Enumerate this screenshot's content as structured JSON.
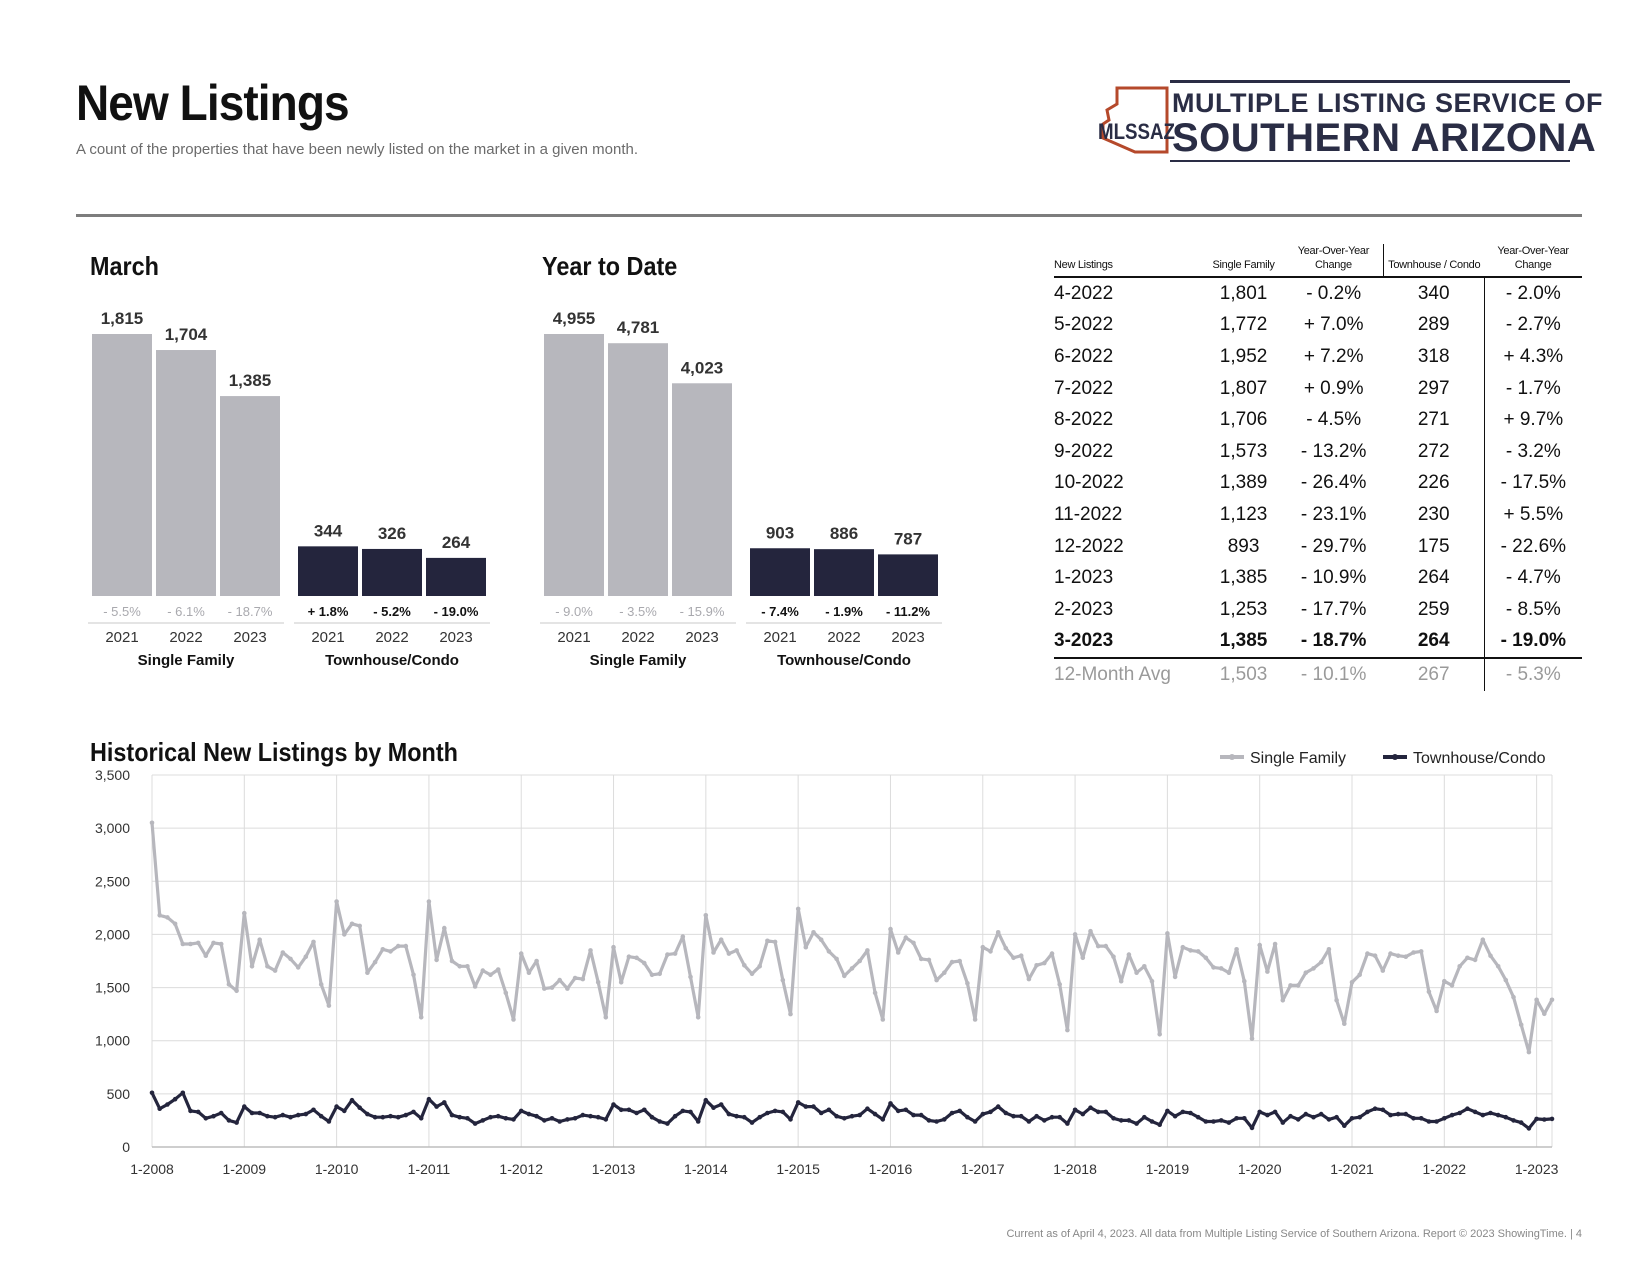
{
  "header": {
    "title": "New Listings",
    "subtitle": "A count of the properties that have been newly listed on the market in a given month.",
    "logo_line1": "MULTIPLE LISTING SERVICE OF",
    "logo_line2": "SOUTHERN ARIZONA",
    "logo_abbr": "MLSSAZ"
  },
  "colors": {
    "single_family": "#b7b7bd",
    "townhouse": "#24253d",
    "logo_outline": "#b5492b",
    "logo_text": "#2a2d45"
  },
  "footer": "Current as of April 4, 2023. All data from Multiple Listing Service of Southern Arizona. Report © 2023 ShowingTime.  |  4",
  "chart_data": [
    {
      "type": "bar",
      "title": "March",
      "groups": [
        {
          "name": "Single Family",
          "categories": [
            "2021",
            "2022",
            "2023"
          ],
          "values": [
            1815,
            1704,
            1385
          ],
          "value_labels": [
            "1,815",
            "1,704",
            "1,385"
          ],
          "changes": [
            "- 5.5%",
            "- 6.1%",
            "- 18.7%"
          ]
        },
        {
          "name": "Townhouse/Condo",
          "categories": [
            "2021",
            "2022",
            "2023"
          ],
          "values": [
            344,
            326,
            264
          ],
          "value_labels": [
            "344",
            "326",
            "264"
          ],
          "changes": [
            "+ 1.8%",
            "- 5.2%",
            "- 19.0%"
          ]
        }
      ]
    },
    {
      "type": "bar",
      "title": "Year to Date",
      "groups": [
        {
          "name": "Single Family",
          "categories": [
            "2021",
            "2022",
            "2023"
          ],
          "values": [
            4955,
            4781,
            4023
          ],
          "value_labels": [
            "4,955",
            "4,781",
            "4,023"
          ],
          "changes": [
            "- 9.0%",
            "- 3.5%",
            "- 15.9%"
          ]
        },
        {
          "name": "Townhouse/Condo",
          "categories": [
            "2021",
            "2022",
            "2023"
          ],
          "values": [
            903,
            886,
            787
          ],
          "value_labels": [
            "903",
            "886",
            "787"
          ],
          "changes": [
            "- 7.4%",
            "- 1.9%",
            "- 11.2%"
          ]
        }
      ]
    },
    {
      "type": "table",
      "headers": [
        "New Listings",
        "Single Family",
        "Year-Over-Year Change",
        "Townhouse / Condo",
        "Year-Over-Year Change"
      ],
      "rows": [
        [
          "4-2022",
          "1,801",
          "- 0.2%",
          "340",
          "- 2.0%"
        ],
        [
          "5-2022",
          "1,772",
          "+ 7.0%",
          "289",
          "- 2.7%"
        ],
        [
          "6-2022",
          "1,952",
          "+ 7.2%",
          "318",
          "+ 4.3%"
        ],
        [
          "7-2022",
          "1,807",
          "+ 0.9%",
          "297",
          "- 1.7%"
        ],
        [
          "8-2022",
          "1,706",
          "- 4.5%",
          "271",
          "+ 9.7%"
        ],
        [
          "9-2022",
          "1,573",
          "- 13.2%",
          "272",
          "- 3.2%"
        ],
        [
          "10-2022",
          "1,389",
          "- 26.4%",
          "226",
          "- 17.5%"
        ],
        [
          "11-2022",
          "1,123",
          "- 23.1%",
          "230",
          "+ 5.5%"
        ],
        [
          "12-2022",
          "893",
          "- 29.7%",
          "175",
          "- 22.6%"
        ],
        [
          "1-2023",
          "1,385",
          "- 10.9%",
          "264",
          "- 4.7%"
        ],
        [
          "2-2023",
          "1,253",
          "- 17.7%",
          "259",
          "- 8.5%"
        ],
        [
          "3-2023",
          "1,385",
          "- 18.7%",
          "264",
          "- 19.0%"
        ],
        [
          "12-Month Avg",
          "1,503",
          "- 10.1%",
          "267",
          "- 5.3%"
        ]
      ]
    },
    {
      "type": "line",
      "title": "Historical New Listings by Month",
      "ylim": [
        0,
        3500
      ],
      "yticks": [
        0,
        500,
        1000,
        1500,
        2000,
        2500,
        3000,
        3500
      ],
      "ytick_labels": [
        "0",
        "500",
        "1,000",
        "1,500",
        "2,000",
        "2,500",
        "3,000",
        "3,500"
      ],
      "xticks": [
        "1-2008",
        "1-2009",
        "1-2010",
        "1-2011",
        "1-2012",
        "1-2013",
        "1-2014",
        "1-2015",
        "1-2016",
        "1-2017",
        "1-2018",
        "1-2019",
        "1-2020",
        "1-2021",
        "1-2022",
        "1-2023"
      ],
      "grid": true,
      "legend": "top-right",
      "series": [
        {
          "name": "Single Family",
          "values": [
            3050,
            2180,
            2160,
            2100,
            1910,
            1910,
            1920,
            1800,
            1920,
            1910,
            1530,
            1470,
            2200,
            1700,
            1950,
            1700,
            1660,
            1830,
            1770,
            1690,
            1790,
            1930,
            1530,
            1330,
            2310,
            2000,
            2100,
            2080,
            1640,
            1740,
            1860,
            1840,
            1890,
            1890,
            1620,
            1220,
            2310,
            1760,
            2060,
            1750,
            1700,
            1700,
            1510,
            1660,
            1620,
            1670,
            1450,
            1200,
            1820,
            1640,
            1750,
            1490,
            1500,
            1570,
            1490,
            1590,
            1580,
            1850,
            1550,
            1220,
            1880,
            1550,
            1790,
            1780,
            1730,
            1620,
            1630,
            1810,
            1820,
            1980,
            1600,
            1220,
            2180,
            1830,
            1950,
            1820,
            1850,
            1710,
            1630,
            1700,
            1940,
            1930,
            1570,
            1250,
            2240,
            1880,
            2020,
            1950,
            1840,
            1770,
            1610,
            1680,
            1750,
            1850,
            1450,
            1200,
            2050,
            1830,
            1970,
            1920,
            1770,
            1760,
            1570,
            1640,
            1740,
            1750,
            1540,
            1200,
            1880,
            1840,
            2020,
            1870,
            1780,
            1800,
            1580,
            1710,
            1730,
            1820,
            1530,
            1100,
            2000,
            1780,
            2030,
            1890,
            1890,
            1790,
            1560,
            1810,
            1640,
            1700,
            1560,
            1060,
            2010,
            1600,
            1880,
            1850,
            1840,
            1780,
            1690,
            1680,
            1640,
            1860,
            1560,
            1020,
            1900,
            1650,
            1910,
            1380,
            1520,
            1520,
            1640,
            1680,
            1740,
            1860,
            1380,
            1160,
            1550,
            1620,
            1820,
            1800,
            1660,
            1820,
            1800,
            1790,
            1830,
            1840,
            1460,
            1280,
            1560,
            1520,
            1700,
            1780,
            1760,
            1950,
            1800,
            1700,
            1570,
            1410,
            1150,
            893,
            1385,
            1253,
            1385
          ]
        },
        {
          "name": "Townhouse/Condo",
          "values": [
            510,
            360,
            400,
            450,
            510,
            340,
            330,
            270,
            290,
            320,
            250,
            230,
            380,
            320,
            320,
            290,
            280,
            300,
            280,
            300,
            310,
            350,
            290,
            240,
            380,
            340,
            440,
            370,
            310,
            280,
            280,
            290,
            280,
            300,
            330,
            270,
            450,
            380,
            420,
            300,
            280,
            270,
            220,
            250,
            280,
            290,
            270,
            260,
            340,
            310,
            290,
            250,
            270,
            240,
            260,
            270,
            300,
            290,
            280,
            260,
            400,
            350,
            350,
            320,
            350,
            280,
            240,
            220,
            290,
            340,
            330,
            240,
            440,
            370,
            400,
            310,
            290,
            280,
            230,
            280,
            320,
            340,
            330,
            260,
            420,
            380,
            380,
            320,
            350,
            290,
            270,
            290,
            300,
            360,
            310,
            260,
            410,
            340,
            350,
            300,
            300,
            250,
            240,
            260,
            320,
            340,
            280,
            240,
            310,
            330,
            380,
            320,
            290,
            290,
            240,
            290,
            250,
            280,
            280,
            220,
            350,
            310,
            370,
            330,
            330,
            270,
            250,
            250,
            220,
            280,
            240,
            210,
            340,
            290,
            330,
            320,
            280,
            240,
            240,
            250,
            230,
            270,
            270,
            180,
            330,
            300,
            330,
            230,
            290,
            260,
            310,
            280,
            310,
            260,
            280,
            200,
            270,
            280,
            330,
            360,
            350,
            300,
            310,
            310,
            270,
            270,
            240,
            240,
            270,
            300,
            320,
            360,
            330,
            300,
            320,
            300,
            280,
            250,
            230,
            175,
            264,
            259,
            264
          ]
        }
      ]
    }
  ]
}
